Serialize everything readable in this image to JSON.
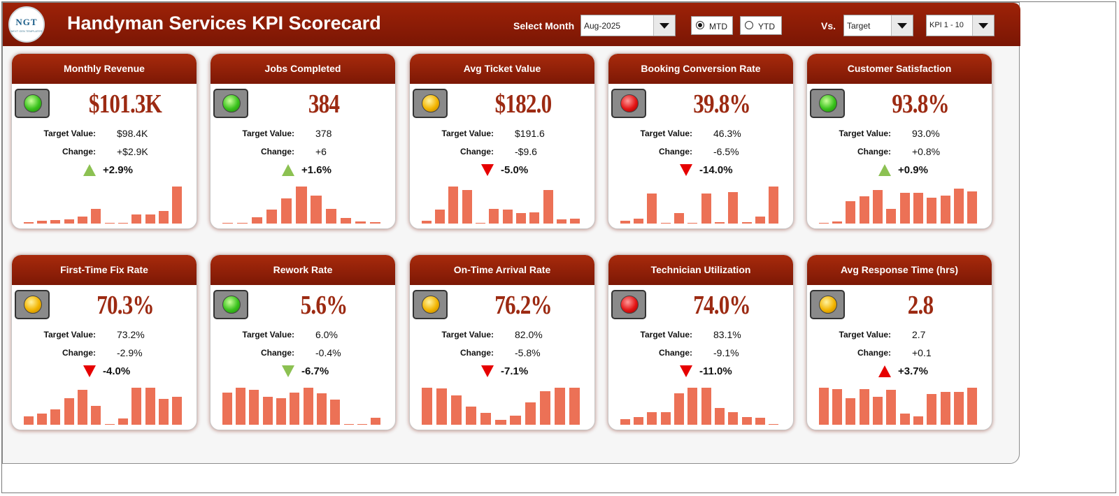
{
  "header": {
    "title": "Handyman Services KPI Scorecard",
    "logo_text": "NGT",
    "logo_sub": "NEXT GEN TEMPLATES",
    "select_month_label": "Select Month",
    "month_value": "Aug-2025",
    "mtd_label": "MTD",
    "ytd_label": "YTD",
    "period_selected": "MTD",
    "vs_label": "Vs.",
    "compare_value": "Target",
    "kpi_range_value": "KPI 1 - 10"
  },
  "colors": {
    "header_bg": "#8a1c06",
    "value_text": "#9c2a12",
    "bar": "#ec7156",
    "arrow_green": "#8cc152",
    "arrow_red": "#e60000"
  },
  "labels": {
    "target": "Target Value:",
    "change": "Change:"
  },
  "cards": [
    {
      "title": "Monthly Revenue",
      "value": "$101.3K",
      "light": "green",
      "target": "$98.4K",
      "change": "+$2.9K",
      "pct": "+2.9%",
      "arrow": "up-green",
      "trend": [
        3,
        7,
        9,
        11,
        17,
        38,
        1,
        1,
        23,
        24,
        32,
        95
      ]
    },
    {
      "title": "Jobs Completed",
      "value": "384",
      "light": "green",
      "target": "378",
      "change": "+6",
      "pct": "+1.6%",
      "arrow": "up-green",
      "trend": [
        1,
        1,
        16,
        35,
        64,
        94,
        72,
        38,
        15,
        5,
        4
      ]
    },
    {
      "title": "Avg Ticket Value",
      "value": "$182.0",
      "light": "yellow",
      "target": "$191.6",
      "change": "-$9.6",
      "pct": "-5.0%",
      "arrow": "down-red",
      "trend": [
        7,
        35,
        95,
        85,
        2,
        38,
        36,
        27,
        28,
        86,
        11,
        12
      ]
    },
    {
      "title": "Booking Conversion Rate",
      "value": "39.8%",
      "light": "red",
      "target": "46.3%",
      "change": "-6.5%",
      "pct": "-14.0%",
      "arrow": "down-red",
      "trend": [
        8,
        12,
        76,
        2,
        27,
        2,
        76,
        4,
        80,
        4,
        18,
        95
      ]
    },
    {
      "title": "Customer Satisfaction",
      "value": "93.8%",
      "light": "green",
      "target": "93.0%",
      "change": "+0.8%",
      "pct": "+0.9%",
      "arrow": "up-green",
      "trend": [
        2,
        6,
        58,
        69,
        85,
        38,
        79,
        78,
        66,
        71,
        90,
        82
      ]
    },
    {
      "title": "First-Time Fix Rate",
      "value": "70.3%",
      "light": "yellow",
      "target": "73.2%",
      "change": "-2.9%",
      "pct": "-4.0%",
      "arrow": "down-red",
      "trend": [
        22,
        28,
        40,
        68,
        90,
        49,
        2,
        16,
        95,
        95,
        66,
        71
      ]
    },
    {
      "title": "Rework Rate",
      "value": "5.6%",
      "light": "green",
      "target": "6.0%",
      "change": "-0.4%",
      "pct": "-6.7%",
      "arrow": "down-green",
      "trend": [
        82,
        95,
        90,
        71,
        67,
        82,
        95,
        80,
        64,
        2,
        2,
        18
      ]
    },
    {
      "title": "On-Time Arrival Rate",
      "value": "76.2%",
      "light": "yellow",
      "target": "82.0%",
      "change": "-5.8%",
      "pct": "-7.1%",
      "arrow": "down-red",
      "trend": [
        95,
        93,
        75,
        47,
        31,
        13,
        23,
        58,
        86,
        95,
        95
      ]
    },
    {
      "title": "Technician Utilization",
      "value": "74.0%",
      "light": "red",
      "target": "83.1%",
      "change": "-9.1%",
      "pct": "-11.0%",
      "arrow": "down-red",
      "trend": [
        14,
        20,
        33,
        33,
        80,
        95,
        95,
        42,
        32,
        20,
        17,
        2
      ]
    },
    {
      "title": "Avg Response Time (hrs)",
      "value": "2.8",
      "light": "yellow",
      "target": "2.7",
      "change": "+0.1",
      "pct": "+3.7%",
      "arrow": "up-red",
      "trend": [
        95,
        91,
        67,
        91,
        71,
        90,
        28,
        21,
        78,
        84,
        84,
        95
      ]
    }
  ]
}
